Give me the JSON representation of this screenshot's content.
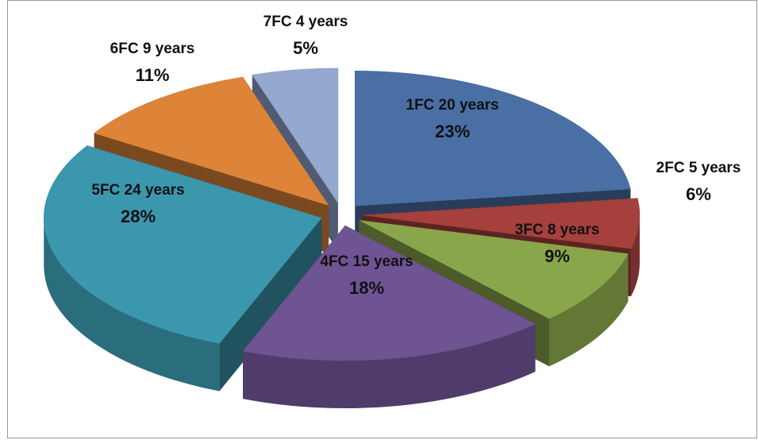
{
  "chart_data": {
    "type": "pie",
    "categories": [
      "1FC  20 years",
      "2FC  5 years",
      "3FC  8 years",
      "4FC  15 years",
      "5FC  24 years",
      "6FC  9 years",
      "7FC  4 years"
    ],
    "values": [
      23,
      6,
      9,
      18,
      28,
      11,
      5
    ],
    "value_labels": [
      "23%",
      "6%",
      "9%",
      "18%",
      "28%",
      "11%",
      "5%"
    ],
    "colors": [
      "#4a6fa5",
      "#a5403d",
      "#8aa64a",
      "#6e5493",
      "#3b97ad",
      "#dd8438",
      "#94a8d0"
    ]
  }
}
